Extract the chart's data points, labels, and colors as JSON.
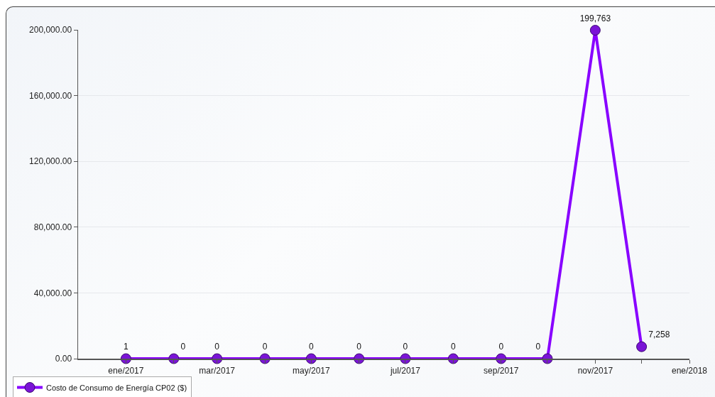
{
  "chart_data": {
    "type": "line",
    "x": [
      "2017-01",
      "2017-02",
      "2017-03",
      "2017-04",
      "2017-05",
      "2017-06",
      "2017-07",
      "2017-08",
      "2017-09",
      "2017-10",
      "2017-11",
      "2017-12"
    ],
    "series": [
      {
        "name": "Costo de Consumo de Energía CP02 ($)",
        "color": "#8800ff",
        "values": [
          1,
          0,
          0,
          0,
          0,
          0,
          0,
          0,
          0,
          0,
          199763,
          7258
        ],
        "value_labels": [
          "1",
          "0",
          "0",
          "0",
          "0",
          "0",
          "0",
          "0",
          "0",
          "0",
          "199,763",
          "7,258"
        ]
      }
    ],
    "xlim": [
      "2016-12-01",
      "2018-01-01"
    ],
    "xticks": [
      {
        "value": "2017-01",
        "label": "ene/2017"
      },
      {
        "value": "2017-02",
        "label": null
      },
      {
        "value": "2017-03",
        "label": "mar/2017"
      },
      {
        "value": "2017-04",
        "label": null
      },
      {
        "value": "2017-05",
        "label": "may/2017"
      },
      {
        "value": "2017-06",
        "label": null
      },
      {
        "value": "2017-07",
        "label": "jul/2017"
      },
      {
        "value": "2017-08",
        "label": null
      },
      {
        "value": "2017-09",
        "label": "sep/2017"
      },
      {
        "value": "2017-10",
        "label": null
      },
      {
        "value": "2017-11",
        "label": "nov/2017"
      },
      {
        "value": "2017-12",
        "label": null
      },
      {
        "value": "2018-01",
        "label": "ene/2018"
      }
    ],
    "ylim": [
      0,
      200000
    ],
    "yticks": [
      {
        "value": 0,
        "label": "0.00"
      },
      {
        "value": 40000,
        "label": "40,000.00"
      },
      {
        "value": 80000,
        "label": "80,000.00"
      },
      {
        "value": 120000,
        "label": "120,000.00"
      },
      {
        "value": 160000,
        "label": "160,000.00"
      },
      {
        "value": 200000,
        "label": "200,000.00"
      }
    ],
    "grid": "y",
    "legend": "bottom",
    "marker": "circle",
    "line_style": "solid"
  }
}
